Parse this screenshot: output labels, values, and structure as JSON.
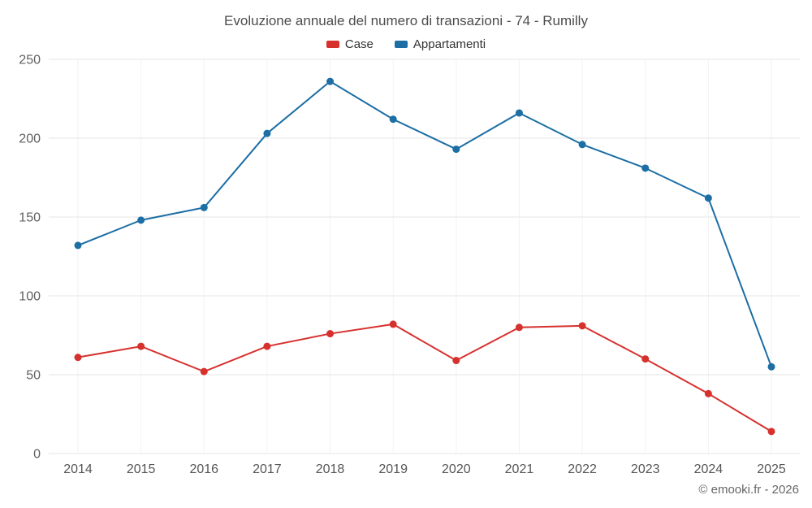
{
  "chart_data": {
    "type": "line",
    "title": "Evoluzione annuale del numero di transazioni - 74 - Rumilly",
    "categories": [
      "2014",
      "2015",
      "2016",
      "2017",
      "2018",
      "2019",
      "2020",
      "2021",
      "2022",
      "2023",
      "2024",
      "2025"
    ],
    "series": [
      {
        "name": "Case",
        "color": "#d7312e",
        "values": [
          61,
          68,
          52,
          68,
          76,
          82,
          59,
          80,
          81,
          60,
          38,
          14
        ]
      },
      {
        "name": "Appartamenti",
        "color": "#1c6ea4",
        "values": [
          132,
          148,
          156,
          203,
          236,
          212,
          193,
          216,
          196,
          181,
          162,
          55
        ]
      }
    ],
    "ylim": [
      0,
      250
    ],
    "yticks": [
      0,
      50,
      100,
      150,
      200,
      250
    ],
    "grid": true,
    "legend_position": "top",
    "xlabel": "",
    "ylabel": ""
  },
  "footer": {
    "copyright": "© emooki.fr - 2026"
  }
}
